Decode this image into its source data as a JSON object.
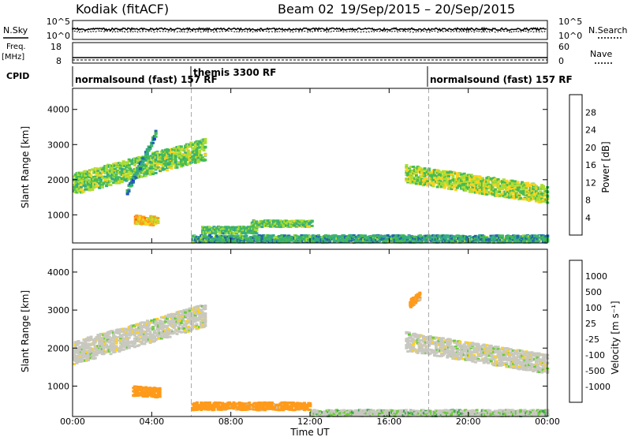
{
  "header": {
    "station": "Kodiak (fitACF)",
    "beam": "Beam 02",
    "date_range": "19/Sep/2015 – 20/Sep/2015"
  },
  "top_panels": {
    "nsky_label": "N.Sky",
    "nsearch_label": "N.Search",
    "noise_ticks": [
      "10^5",
      "10^0"
    ],
    "freq_label": "Freq.",
    "freq_unit": "[MHz]",
    "freq_ticks": [
      "18",
      "8"
    ],
    "nave_label": "Nave",
    "nave_ticks": [
      "60",
      "0"
    ],
    "cpid_label": "CPID",
    "modes": [
      {
        "label": "normalsound (fast) 157 RF",
        "start_h": 0,
        "end_h": 6
      },
      {
        "label": "themis 3300 RF",
        "start_h": 6,
        "end_h": 18
      },
      {
        "label": "normalsound (fast) 157 RF",
        "start_h": 18,
        "end_h": 24
      }
    ]
  },
  "colors": {
    "power_scale": [
      "#2233dd",
      "#2266aa",
      "#33aa88",
      "#44bb55",
      "#aadd33",
      "#ffd21f",
      "#ff9a1a",
      "#ff5a10",
      "#ee1111"
    ],
    "velocity_scale": [
      "#2233dd",
      "#2e5aa8",
      "#3aa050",
      "#66cc33",
      "#c8c8c0",
      "#c8c8c0",
      "#ffd21f",
      "#ff9a1a",
      "#ff5a10",
      "#ee1111"
    ],
    "gray": "#c8c8c0",
    "mode_marker": "#aaaaaa"
  },
  "chart_data": [
    {
      "type": "heatmap",
      "name": "power",
      "ylabel": "Slant Range [km]",
      "yticks": [
        "1000",
        "2000",
        "3000",
        "4000"
      ],
      "ylim": [
        200,
        4600
      ],
      "xlim": [
        0,
        24
      ],
      "colorbar_label": "Power [dB]",
      "colorbar_ticks": [
        "4",
        "8",
        "12",
        "16",
        "20",
        "24",
        "28"
      ],
      "colorbar_range": [
        0,
        32
      ],
      "features": [
        {
          "t0": 0,
          "t1": 6.7,
          "r0": 1900,
          "r1": 2900,
          "w": 600,
          "p": 14
        },
        {
          "t0": 2.7,
          "t1": 4.2,
          "r0": 1700,
          "r1": 3400,
          "w": 200,
          "p": 8
        },
        {
          "t0": 3.1,
          "t1": 4.3,
          "r0": 900,
          "r1": 850,
          "w": 250,
          "p": 20
        },
        {
          "t0": 6.5,
          "t1": 9.3,
          "r0": 600,
          "r1": 600,
          "w": 200,
          "p": 12
        },
        {
          "t0": 9.0,
          "t1": 12.1,
          "r0": 780,
          "r1": 780,
          "w": 180,
          "p": 14
        },
        {
          "t0": 6,
          "t1": 24,
          "r0": 350,
          "r1": 350,
          "w": 200,
          "p": 10
        },
        {
          "t0": 16.8,
          "t1": 24,
          "r0": 2200,
          "r1": 1600,
          "w": 500,
          "p": 16
        }
      ]
    },
    {
      "type": "heatmap",
      "name": "velocity",
      "ylabel": "Slant Range [km]",
      "yticks": [
        "1000",
        "2000",
        "3000",
        "4000"
      ],
      "ylim": [
        200,
        4600
      ],
      "xlim": [
        0,
        24
      ],
      "xlabel": "Time UT",
      "xticks": [
        "00:00",
        "04:00",
        "08:00",
        "12:00",
        "16:00",
        "20:00",
        "00:00"
      ],
      "colorbar_label": "Velocity [m s⁻¹]",
      "colorbar_ticks": [
        "1000",
        "500",
        "100",
        "25",
        "-25",
        "-100",
        "-500",
        "-1000"
      ],
      "colorbar_range": [
        -1000,
        1000
      ],
      "features": [
        {
          "t0": 0,
          "t1": 6.7,
          "r0": 1900,
          "r1": 2900,
          "w": 600,
          "v": 0
        },
        {
          "t0": 3.0,
          "t1": 4.4,
          "r0": 900,
          "r1": 850,
          "w": 250,
          "v": -300
        },
        {
          "t0": 6,
          "t1": 12,
          "r0": 500,
          "r1": 500,
          "w": 200,
          "v": -200
        },
        {
          "t0": 12,
          "t1": 24,
          "r0": 320,
          "r1": 320,
          "w": 160,
          "v": 80
        },
        {
          "t0": 16.8,
          "t1": 24,
          "r0": 2200,
          "r1": 1600,
          "w": 500,
          "v": 0
        },
        {
          "t0": 17.0,
          "t1": 17.5,
          "r0": 3200,
          "r1": 3400,
          "w": 200,
          "v": -200
        }
      ]
    }
  ]
}
